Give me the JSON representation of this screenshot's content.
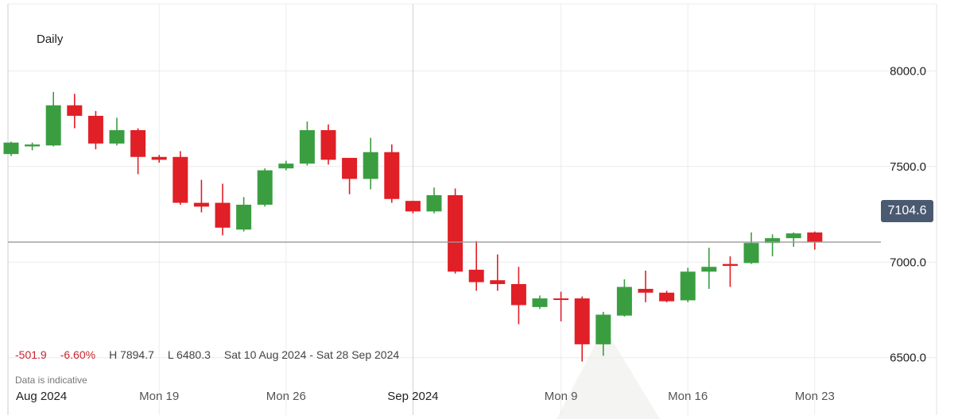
{
  "header": {
    "interval": "Daily"
  },
  "stats": {
    "change": "-501.9",
    "change_pct": "-6.60%",
    "high": "H 7894.7",
    "low": "L 6480.3",
    "range": "Sat 10 Aug 2024 - Sat 28 Sep 2024"
  },
  "disclaimer": "Data is indicative",
  "last_price": "7104.6",
  "colors": {
    "up": "#3a9e41",
    "down": "#e01f26",
    "grid": "#ececec",
    "axis_line": "#cccccc",
    "price_line": "#9a9a9a"
  },
  "chart_data": {
    "type": "candlestick",
    "ylim": [
      6200,
      8350
    ],
    "yticks": [
      6500,
      7000,
      7500,
      8000
    ],
    "ytick_labels": [
      "6500.0",
      "7000.0",
      "7500.0",
      "8000.0"
    ],
    "x_labels": [
      {
        "label": "Aug 2024",
        "index": -0.5
      },
      {
        "label": "Mon 19",
        "index": 7
      },
      {
        "label": "Mon 26",
        "index": 13
      },
      {
        "label": "Sep 2024",
        "index": 19
      },
      {
        "label": "Mon 9",
        "index": 26
      },
      {
        "label": "Mon 16",
        "index": 32
      },
      {
        "label": "Mon 23",
        "index": 38
      }
    ],
    "candles": [
      {
        "o": 7565,
        "h": 7630,
        "l": 7555,
        "c": 7625
      },
      {
        "o": 7605,
        "h": 7625,
        "l": 7585,
        "c": 7615
      },
      {
        "o": 7610,
        "h": 7890,
        "l": 7605,
        "c": 7820
      },
      {
        "o": 7820,
        "h": 7880,
        "l": 7700,
        "c": 7765
      },
      {
        "o": 7765,
        "h": 7790,
        "l": 7590,
        "c": 7620
      },
      {
        "o": 7620,
        "h": 7755,
        "l": 7610,
        "c": 7690
      },
      {
        "o": 7690,
        "h": 7700,
        "l": 7460,
        "c": 7550
      },
      {
        "o": 7550,
        "h": 7560,
        "l": 7520,
        "c": 7535
      },
      {
        "o": 7550,
        "h": 7580,
        "l": 7300,
        "c": 7310
      },
      {
        "o": 7310,
        "h": 7430,
        "l": 7260,
        "c": 7290
      },
      {
        "o": 7310,
        "h": 7410,
        "l": 7140,
        "c": 7180
      },
      {
        "o": 7170,
        "h": 7340,
        "l": 7160,
        "c": 7300
      },
      {
        "o": 7300,
        "h": 7490,
        "l": 7290,
        "c": 7480
      },
      {
        "o": 7490,
        "h": 7530,
        "l": 7480,
        "c": 7515
      },
      {
        "o": 7515,
        "h": 7735,
        "l": 7505,
        "c": 7690
      },
      {
        "o": 7690,
        "h": 7720,
        "l": 7510,
        "c": 7535
      },
      {
        "o": 7545,
        "h": 7545,
        "l": 7355,
        "c": 7435
      },
      {
        "o": 7435,
        "h": 7650,
        "l": 7380,
        "c": 7575
      },
      {
        "o": 7575,
        "h": 7615,
        "l": 7310,
        "c": 7330
      },
      {
        "o": 7320,
        "h": 7320,
        "l": 7255,
        "c": 7265
      },
      {
        "o": 7265,
        "h": 7390,
        "l": 7255,
        "c": 7350
      },
      {
        "o": 7350,
        "h": 7385,
        "l": 6940,
        "c": 6950
      },
      {
        "o": 6960,
        "h": 7110,
        "l": 6850,
        "c": 6895
      },
      {
        "o": 6905,
        "h": 7040,
        "l": 6850,
        "c": 6885
      },
      {
        "o": 6885,
        "h": 6975,
        "l": 6675,
        "c": 6775
      },
      {
        "o": 6765,
        "h": 6825,
        "l": 6755,
        "c": 6810
      },
      {
        "o": 6810,
        "h": 6845,
        "l": 6690,
        "c": 6805
      },
      {
        "o": 6810,
        "h": 6820,
        "l": 6480,
        "c": 6570
      },
      {
        "o": 6570,
        "h": 6740,
        "l": 6510,
        "c": 6725
      },
      {
        "o": 6720,
        "h": 6910,
        "l": 6715,
        "c": 6870
      },
      {
        "o": 6860,
        "h": 6955,
        "l": 6790,
        "c": 6840
      },
      {
        "o": 6840,
        "h": 6850,
        "l": 6790,
        "c": 6795
      },
      {
        "o": 6800,
        "h": 6970,
        "l": 6790,
        "c": 6950
      },
      {
        "o": 6950,
        "h": 7075,
        "l": 6860,
        "c": 6975
      },
      {
        "o": 6990,
        "h": 7030,
        "l": 6870,
        "c": 6980
      },
      {
        "o": 6995,
        "h": 7155,
        "l": 6990,
        "c": 7100
      },
      {
        "o": 7100,
        "h": 7145,
        "l": 7030,
        "c": 7125
      },
      {
        "o": 7125,
        "h": 7155,
        "l": 7080,
        "c": 7150
      },
      {
        "o": 7155,
        "h": 7160,
        "l": 7065,
        "c": 7105
      }
    ]
  }
}
